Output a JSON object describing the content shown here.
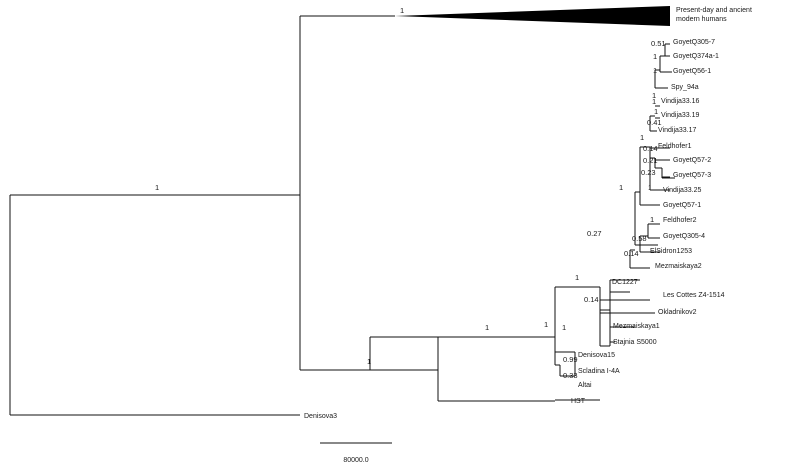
{
  "tree": {
    "tips": [
      {
        "id": "modern",
        "label_lines": [
          "Present-day and ancient",
          "modern humans"
        ]
      },
      {
        "id": "goyetq305_7",
        "label": "GoyetQ305-7"
      },
      {
        "id": "goyetq374a_1",
        "label": "GoyetQ374a-1"
      },
      {
        "id": "goyetq56_1",
        "label": "GoyetQ56-1"
      },
      {
        "id": "spy_94a",
        "label": "Spy_94a"
      },
      {
        "id": "vindija33_16",
        "label": "Vindija33.16"
      },
      {
        "id": "vindija33_19",
        "label": "Vindija33.19"
      },
      {
        "id": "vindija33_17",
        "label": "Vindija33.17"
      },
      {
        "id": "feldhofer1",
        "label": "Feldhofer1"
      },
      {
        "id": "goyetq57_2",
        "label": "GoyetQ57-2"
      },
      {
        "id": "goyetq57_3",
        "label": "GoyetQ57-3"
      },
      {
        "id": "vindija33_25",
        "label": "Vindija33.25"
      },
      {
        "id": "goyetq57_1",
        "label": "GoyetQ57-1"
      },
      {
        "id": "feldhofer2",
        "label": "Feldhofer2"
      },
      {
        "id": "goyetq305_4",
        "label": "GoyetQ305-4"
      },
      {
        "id": "elsidron1253",
        "label": "ElSidron1253"
      },
      {
        "id": "mezmaiskaya2",
        "label": "Mezmaiskaya2"
      },
      {
        "id": "dc1227",
        "label": "DC1227"
      },
      {
        "id": "les_cottes",
        "label": "Les Cottes Z4-1514"
      },
      {
        "id": "okladnikov2",
        "label": "Okladnikov2"
      },
      {
        "id": "mezmaiskaya1",
        "label": "Mezmaiskaya1"
      },
      {
        "id": "stajnia",
        "label": "Stajnia S5000",
        "color": "#d9262c"
      },
      {
        "id": "denisova15",
        "label": "Denisova15"
      },
      {
        "id": "scladina",
        "label": "Scladina I-4A"
      },
      {
        "id": "altai",
        "label": "Altai"
      },
      {
        "id": "hst",
        "label": "HST"
      },
      {
        "id": "denisova3",
        "label": "Denisova3"
      }
    ],
    "support_values": [
      {
        "id": "root_upper",
        "value": "1"
      },
      {
        "id": "modern_branch",
        "value": "1"
      },
      {
        "id": "neanderthal_branch",
        "value": "1"
      },
      {
        "id": "nean_after_hst",
        "value": "1"
      },
      {
        "id": "nean_after_denisova",
        "value": "1"
      },
      {
        "id": "nean_after_okladnikov",
        "value": "1"
      },
      {
        "id": "nean_mezmaiskaya1_stajnia",
        "value": "1"
      },
      {
        "id": "nean_les_cottes",
        "value": "0.14"
      },
      {
        "id": "nean_dc1227",
        "value": "0.27"
      },
      {
        "id": "late_nean",
        "value": "1"
      },
      {
        "id": "late_core",
        "value": "1"
      },
      {
        "id": "goyet305_7_pair",
        "value": "0.51"
      },
      {
        "id": "goyet374_pair",
        "value": "1"
      },
      {
        "id": "goyet56_group",
        "value": "1"
      },
      {
        "id": "spy_group",
        "value": "1"
      },
      {
        "id": "vindija_group",
        "value": "1"
      },
      {
        "id": "vindija16_19",
        "value": "1"
      },
      {
        "id": "vindija_outer",
        "value": "0.41"
      },
      {
        "id": "feldhofer1_node",
        "value": "0.14"
      },
      {
        "id": "goyet57_2_node",
        "value": "0.21"
      },
      {
        "id": "goyet57_3_node",
        "value": "0.23"
      },
      {
        "id": "vindija25_node",
        "value": "1"
      },
      {
        "id": "feldhofer2_pair",
        "value": "1"
      },
      {
        "id": "goyet305_4_node",
        "value": "0.58"
      },
      {
        "id": "elsidron_node",
        "value": "0.14"
      },
      {
        "id": "denisova15_node",
        "value": "0.99"
      },
      {
        "id": "scladina_node",
        "value": "0.33"
      }
    ],
    "scale_bar": {
      "label": "80000.0"
    }
  }
}
